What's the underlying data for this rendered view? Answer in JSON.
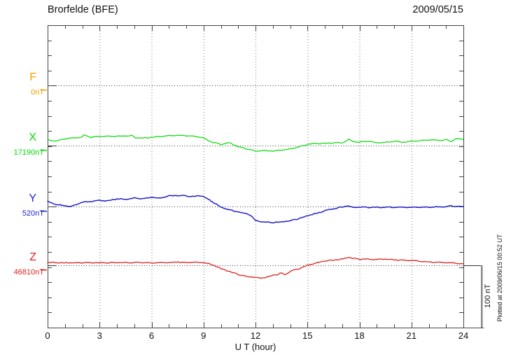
{
  "chart_data": {
    "type": "line",
    "title": "Brorfelde (BFE)",
    "date": "2009/05/15",
    "xlabel": "U T (hour)",
    "x_unit": "hour",
    "x_range": [
      0,
      24
    ],
    "x_ticks": [
      0,
      3,
      6,
      9,
      12,
      15,
      18,
      21,
      24
    ],
    "x_minor_tick_interval": 1,
    "grid": "dotted",
    "y_reference": {
      "label": "100 nT",
      "nT": 100
    },
    "annotations": {
      "plotted_at": "Plotted at 2009/06/15 00:52 UT"
    },
    "series": [
      {
        "component": "F",
        "baseline_label": "0nT",
        "color": "#F2A200",
        "unit": "nT offset from baseline",
        "points": []
      },
      {
        "component": "X",
        "baseline_label": "17190nT",
        "color": "#00DC00",
        "unit": "nT offset from baseline",
        "points": [
          [
            0,
            9
          ],
          [
            0.5,
            8
          ],
          [
            1,
            11
          ],
          [
            1.5,
            12.5
          ],
          [
            2,
            13.5
          ],
          [
            2.1,
            17
          ],
          [
            2.5,
            13.5
          ],
          [
            3,
            15
          ],
          [
            3.5,
            15
          ],
          [
            4,
            15
          ],
          [
            4.5,
            16
          ],
          [
            4.9,
            16
          ],
          [
            5.1,
            12.5
          ],
          [
            5.5,
            12.5
          ],
          [
            6,
            13.5
          ],
          [
            6.5,
            15
          ],
          [
            7,
            16
          ],
          [
            7.5,
            16.5
          ],
          [
            8,
            16
          ],
          [
            8.5,
            15
          ],
          [
            9,
            12.5
          ],
          [
            9.5,
            5.5
          ],
          [
            10,
            2
          ],
          [
            10.5,
            4.5
          ],
          [
            11,
            -2
          ],
          [
            11.5,
            -5.5
          ],
          [
            12,
            -9
          ],
          [
            12.5,
            -8
          ],
          [
            13,
            -9
          ],
          [
            13.5,
            -7
          ],
          [
            14,
            -5.5
          ],
          [
            14.5,
            -2
          ],
          [
            15,
            2
          ],
          [
            15.5,
            3.5
          ],
          [
            16,
            3.5
          ],
          [
            16.5,
            4.5
          ],
          [
            17,
            4.5
          ],
          [
            17.4,
            10
          ],
          [
            17.6,
            7
          ],
          [
            18,
            5.5
          ],
          [
            18.5,
            7
          ],
          [
            19,
            4.5
          ],
          [
            19.5,
            5.5
          ],
          [
            20,
            7
          ],
          [
            20.5,
            5.5
          ],
          [
            21,
            7
          ],
          [
            21.5,
            8
          ],
          [
            22,
            9
          ],
          [
            22.5,
            9
          ],
          [
            23,
            9
          ],
          [
            23.3,
            7
          ],
          [
            23.6,
            11.5
          ],
          [
            24,
            10
          ]
        ]
      },
      {
        "component": "Y",
        "baseline_label": "520nT",
        "color": "#2222CC",
        "unit": "nT offset from baseline",
        "points": [
          [
            0,
            8
          ],
          [
            0.5,
            3.5
          ],
          [
            1,
            1
          ],
          [
            1.3,
            0
          ],
          [
            1.6,
            2.5
          ],
          [
            2,
            7
          ],
          [
            2.5,
            8
          ],
          [
            3,
            10
          ],
          [
            3.5,
            9
          ],
          [
            4,
            12.5
          ],
          [
            4.5,
            11.5
          ],
          [
            5,
            13.5
          ],
          [
            5.5,
            12.5
          ],
          [
            6,
            15
          ],
          [
            6.5,
            13.5
          ],
          [
            7,
            17
          ],
          [
            7.5,
            18
          ],
          [
            8,
            17
          ],
          [
            8.5,
            16
          ],
          [
            8.7,
            18
          ],
          [
            9,
            16
          ],
          [
            9.5,
            8
          ],
          [
            10,
            -1
          ],
          [
            10.5,
            -5.5
          ],
          [
            11,
            -9
          ],
          [
            11.5,
            -11.5
          ],
          [
            11.8,
            -16
          ],
          [
            12,
            -23
          ],
          [
            12.5,
            -25
          ],
          [
            13,
            -26
          ],
          [
            13.5,
            -25
          ],
          [
            14,
            -23
          ],
          [
            14.5,
            -19.5
          ],
          [
            15,
            -15
          ],
          [
            15.5,
            -11.5
          ],
          [
            16,
            -7
          ],
          [
            16.5,
            -3.5
          ],
          [
            17,
            -1
          ],
          [
            17.3,
            1
          ],
          [
            17.6,
            -1
          ],
          [
            18,
            -1
          ],
          [
            19,
            -1.5
          ],
          [
            20,
            -1
          ],
          [
            21,
            -1.5
          ],
          [
            22,
            -1
          ],
          [
            23,
            -0.5
          ],
          [
            23.3,
            1
          ],
          [
            23.6,
            0
          ],
          [
            24,
            0
          ]
        ]
      },
      {
        "component": "Z",
        "baseline_label": "46810nT",
        "color": "#E02020",
        "unit": "nT offset from baseline",
        "points": [
          [
            0,
            4.5
          ],
          [
            1,
            4
          ],
          [
            2,
            4.5
          ],
          [
            3,
            4
          ],
          [
            4,
            4.5
          ],
          [
            5,
            4.5
          ],
          [
            6,
            4
          ],
          [
            7,
            4.5
          ],
          [
            7.5,
            5.5
          ],
          [
            8,
            4.5
          ],
          [
            8.5,
            5
          ],
          [
            9,
            4.5
          ],
          [
            9.3,
            2.5
          ],
          [
            9.6,
            0
          ],
          [
            10,
            -5.5
          ],
          [
            10.5,
            -10
          ],
          [
            11,
            -15
          ],
          [
            11.5,
            -18
          ],
          [
            12,
            -19.5
          ],
          [
            12.3,
            -21
          ],
          [
            12.6,
            -19.5
          ],
          [
            13,
            -16
          ],
          [
            13.3,
            -15
          ],
          [
            13.5,
            -12.5
          ],
          [
            13.7,
            -15
          ],
          [
            14,
            -10
          ],
          [
            14.5,
            -5.5
          ],
          [
            15,
            0
          ],
          [
            15.5,
            3.5
          ],
          [
            16,
            7
          ],
          [
            16.5,
            8.5
          ],
          [
            17,
            10
          ],
          [
            17.4,
            13.5
          ],
          [
            17.6,
            11
          ],
          [
            18,
            10
          ],
          [
            18.5,
            10
          ],
          [
            19,
            9.5
          ],
          [
            19.5,
            10
          ],
          [
            20,
            9
          ],
          [
            20.5,
            8
          ],
          [
            21,
            8
          ],
          [
            21.5,
            7
          ],
          [
            22,
            5.5
          ],
          [
            22.5,
            5
          ],
          [
            23,
            4.5
          ],
          [
            23.5,
            3.5
          ],
          [
            24,
            2.5
          ]
        ]
      }
    ]
  }
}
